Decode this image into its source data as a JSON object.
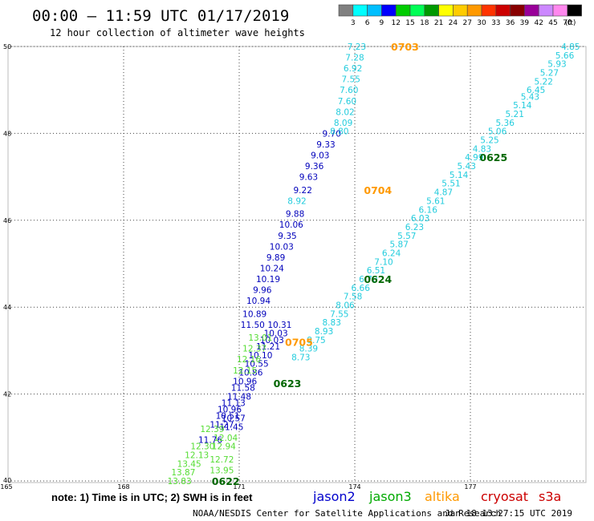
{
  "title": "00:00 – 11:59 UTC 01/17/2019",
  "subtitle": "12 hour collection of altimeter wave heights",
  "colorbar": {
    "colors": [
      "#808080",
      "#00ffff",
      "#00bfff",
      "#0000ff",
      "#00cc00",
      "#00ff55",
      "#009900",
      "#ffff00",
      "#ffcc00",
      "#ff9900",
      "#ff3300",
      "#cc0000",
      "#880000",
      "#990099",
      "#cc88ff",
      "#ff88ee",
      "#000000"
    ],
    "labels": [
      "3",
      "6",
      "9",
      "12",
      "15",
      "18",
      "21",
      "24",
      "27",
      "30",
      "33",
      "36",
      "39",
      "42",
      "45",
      "70",
      "(ft)"
    ]
  },
  "note": "note: 1) Time is in UTC; 2) SWH is in feet",
  "legend": [
    {
      "name": "jason2",
      "color": "#0000cc"
    },
    {
      "name": "jason3",
      "color": "#00aa00"
    },
    {
      "name": "altika",
      "color": "#ff9900"
    },
    {
      "name": "cryosat",
      "color": "#cc0000"
    },
    {
      "name": "s3a",
      "color": "#cc0000"
    }
  ],
  "credit": "NOAA/NESDIS Center for Satellite Applications and Research",
  "timestamp": "Jan 18 13:27:15 UTC 2019",
  "chart_data": {
    "type": "scatter",
    "xticks": [
      165,
      168,
      171,
      174,
      177
    ],
    "yticks": [
      40,
      42,
      44,
      46,
      48,
      50
    ],
    "xlim": [
      165,
      180
    ],
    "ylim": [
      40,
      50
    ],
    "grid": "dotted",
    "series": [
      {
        "name": "jason2",
        "color": "#0000bb",
        "points": [
          {
            "x": 173.4,
            "y": 48.0,
            "v": "9.70"
          },
          {
            "x": 173.25,
            "y": 47.75,
            "v": "9.33"
          },
          {
            "x": 173.1,
            "y": 47.5,
            "v": "9.03"
          },
          {
            "x": 172.95,
            "y": 47.25,
            "v": "9.36"
          },
          {
            "x": 172.8,
            "y": 47.0,
            "v": "9.63"
          },
          {
            "x": 172.65,
            "y": 46.7,
            "v": "9.22"
          },
          {
            "x": 172.45,
            "y": 46.15,
            "v": "9.88"
          },
          {
            "x": 172.35,
            "y": 45.9,
            "v": "10.06"
          },
          {
            "x": 172.25,
            "y": 45.65,
            "v": "9.35"
          },
          {
            "x": 172.1,
            "y": 45.4,
            "v": "10.03"
          },
          {
            "x": 171.95,
            "y": 45.15,
            "v": "9.89"
          },
          {
            "x": 171.85,
            "y": 44.9,
            "v": "10.24"
          },
          {
            "x": 171.75,
            "y": 44.65,
            "v": "10.19"
          },
          {
            "x": 171.6,
            "y": 44.4,
            "v": "9.96"
          },
          {
            "x": 171.5,
            "y": 44.15,
            "v": "10.94"
          },
          {
            "x": 171.4,
            "y": 43.85,
            "v": "10.89"
          },
          {
            "x": 171.35,
            "y": 43.6,
            "v": "11.50"
          },
          {
            "x": 172.05,
            "y": 43.6,
            "v": "10.31"
          },
          {
            "x": 171.95,
            "y": 43.4,
            "v": "10.03"
          },
          {
            "x": 171.85,
            "y": 43.25,
            "v": "10.03"
          },
          {
            "x": 171.75,
            "y": 43.1,
            "v": "11.21"
          },
          {
            "x": 171.55,
            "y": 42.9,
            "v": "10.10"
          },
          {
            "x": 171.45,
            "y": 42.7,
            "v": "10.55"
          },
          {
            "x": 171.3,
            "y": 42.5,
            "v": "10.86"
          },
          {
            "x": 171.15,
            "y": 42.3,
            "v": "10.96"
          },
          {
            "x": 171.1,
            "y": 42.15,
            "v": "11.58"
          },
          {
            "x": 171.0,
            "y": 41.95,
            "v": "11.48"
          },
          {
            "x": 170.85,
            "y": 41.8,
            "v": "11.13"
          },
          {
            "x": 170.75,
            "y": 41.65,
            "v": "10.96"
          },
          {
            "x": 170.7,
            "y": 41.5,
            "v": "10.51"
          },
          {
            "x": 170.85,
            "y": 41.45,
            "v": "10.57"
          },
          {
            "x": 170.55,
            "y": 41.3,
            "v": "11.27"
          },
          {
            "x": 170.8,
            "y": 41.25,
            "v": "11.45"
          },
          {
            "x": 170.25,
            "y": 40.95,
            "v": "11.76"
          }
        ]
      },
      {
        "name": "jason3",
        "color": "#55dd33",
        "points": [
          {
            "x": 171.55,
            "y": 43.3,
            "v": "13.01"
          },
          {
            "x": 171.4,
            "y": 43.05,
            "v": "12.37"
          },
          {
            "x": 171.25,
            "y": 42.8,
            "v": "12.16"
          },
          {
            "x": 171.15,
            "y": 42.55,
            "v": "12.15"
          },
          {
            "x": 170.3,
            "y": 41.2,
            "v": "12.39"
          },
          {
            "x": 170.65,
            "y": 41.0,
            "v": "12.04"
          },
          {
            "x": 170.05,
            "y": 40.8,
            "v": "12.30"
          },
          {
            "x": 170.6,
            "y": 40.8,
            "v": "12.94"
          },
          {
            "x": 169.9,
            "y": 40.6,
            "v": "12.13"
          },
          {
            "x": 170.55,
            "y": 40.5,
            "v": "12.72"
          },
          {
            "x": 169.7,
            "y": 40.4,
            "v": "13.45"
          },
          {
            "x": 170.55,
            "y": 40.25,
            "v": "13.95"
          },
          {
            "x": 169.55,
            "y": 40.2,
            "v": "13.87"
          },
          {
            "x": 169.45,
            "y": 40.0,
            "v": "13.83"
          }
        ]
      },
      {
        "name": "s3a-east",
        "color": "#22ccdd",
        "points": [
          {
            "x": 179.6,
            "y": 50.0,
            "v": "4.85"
          },
          {
            "x": 179.45,
            "y": 49.8,
            "v": "5.66"
          },
          {
            "x": 179.25,
            "y": 49.6,
            "v": "5.93"
          },
          {
            "x": 179.05,
            "y": 49.4,
            "v": "5.27"
          },
          {
            "x": 178.9,
            "y": 49.2,
            "v": "5.22"
          },
          {
            "x": 178.7,
            "y": 49.0,
            "v": "6.45"
          },
          {
            "x": 178.55,
            "y": 48.85,
            "v": "5.43"
          },
          {
            "x": 178.35,
            "y": 48.65,
            "v": "5.14"
          },
          {
            "x": 178.15,
            "y": 48.45,
            "v": "5.21"
          },
          {
            "x": 177.9,
            "y": 48.25,
            "v": "5.36"
          },
          {
            "x": 177.7,
            "y": 48.05,
            "v": "5.06"
          },
          {
            "x": 177.5,
            "y": 47.85,
            "v": "5.25"
          },
          {
            "x": 177.3,
            "y": 47.65,
            "v": "4.83"
          },
          {
            "x": 177.1,
            "y": 47.45,
            "v": "4.99"
          },
          {
            "x": 176.9,
            "y": 47.25,
            "v": "5.43"
          },
          {
            "x": 176.7,
            "y": 47.05,
            "v": "5.14"
          },
          {
            "x": 176.5,
            "y": 46.85,
            "v": "5.51"
          },
          {
            "x": 176.3,
            "y": 46.65,
            "v": "4.87"
          },
          {
            "x": 176.1,
            "y": 46.45,
            "v": "5.61"
          },
          {
            "x": 175.9,
            "y": 46.25,
            "v": "6.16"
          },
          {
            "x": 175.7,
            "y": 46.05,
            "v": "6.03"
          },
          {
            "x": 175.55,
            "y": 45.85,
            "v": "6.23"
          },
          {
            "x": 175.35,
            "y": 45.65,
            "v": "5.57"
          },
          {
            "x": 175.15,
            "y": 45.45,
            "v": "5.87"
          },
          {
            "x": 174.95,
            "y": 45.25,
            "v": "6.24"
          },
          {
            "x": 174.75,
            "y": 45.05,
            "v": "7.10"
          },
          {
            "x": 174.55,
            "y": 44.85,
            "v": "6.51"
          },
          {
            "x": 174.35,
            "y": 44.65,
            "v": "6.70"
          },
          {
            "x": 174.15,
            "y": 44.45,
            "v": "6.66"
          },
          {
            "x": 173.95,
            "y": 44.25,
            "v": "7.58"
          },
          {
            "x": 173.75,
            "y": 44.05,
            "v": "8.06"
          },
          {
            "x": 173.6,
            "y": 43.85,
            "v": "7.55"
          },
          {
            "x": 173.4,
            "y": 43.65,
            "v": "8.83"
          },
          {
            "x": 173.2,
            "y": 43.45,
            "v": "8.93"
          },
          {
            "x": 173.0,
            "y": 43.25,
            "v": "8.75"
          },
          {
            "x": 172.8,
            "y": 43.05,
            "v": "8.39"
          },
          {
            "x": 172.6,
            "y": 42.85,
            "v": "8.73"
          }
        ]
      },
      {
        "name": "s3a-north",
        "color": "#22ccdd",
        "points": [
          {
            "x": 174.05,
            "y": 50.0,
            "v": "7.23"
          },
          {
            "x": 174.0,
            "y": 49.75,
            "v": "7.28"
          },
          {
            "x": 173.95,
            "y": 49.5,
            "v": "6.92"
          },
          {
            "x": 173.9,
            "y": 49.25,
            "v": "7.55"
          },
          {
            "x": 173.85,
            "y": 49.0,
            "v": "7.60"
          },
          {
            "x": 173.8,
            "y": 48.75,
            "v": "7.60"
          },
          {
            "x": 173.75,
            "y": 48.5,
            "v": "8.02"
          },
          {
            "x": 173.7,
            "y": 48.25,
            "v": "8.09"
          },
          {
            "x": 173.6,
            "y": 48.05,
            "v": "8.80"
          },
          {
            "x": 172.5,
            "y": 46.45,
            "v": "8.92"
          }
        ]
      }
    ],
    "time_labels": [
      {
        "x": 175.3,
        "y": 50.0,
        "v": "0703",
        "color": "#ff9900"
      },
      {
        "x": 177.6,
        "y": 47.45,
        "v": "0625",
        "color": "#006600"
      },
      {
        "x": 174.6,
        "y": 46.7,
        "v": "0704",
        "color": "#ff9900"
      },
      {
        "x": 174.6,
        "y": 44.65,
        "v": "0624",
        "color": "#006600"
      },
      {
        "x": 172.55,
        "y": 43.2,
        "v": "0705",
        "color": "#ff9900"
      },
      {
        "x": 172.25,
        "y": 42.25,
        "v": "0623",
        "color": "#006600"
      },
      {
        "x": 170.65,
        "y": 40.0,
        "v": "0622",
        "color": "#006600"
      }
    ]
  }
}
